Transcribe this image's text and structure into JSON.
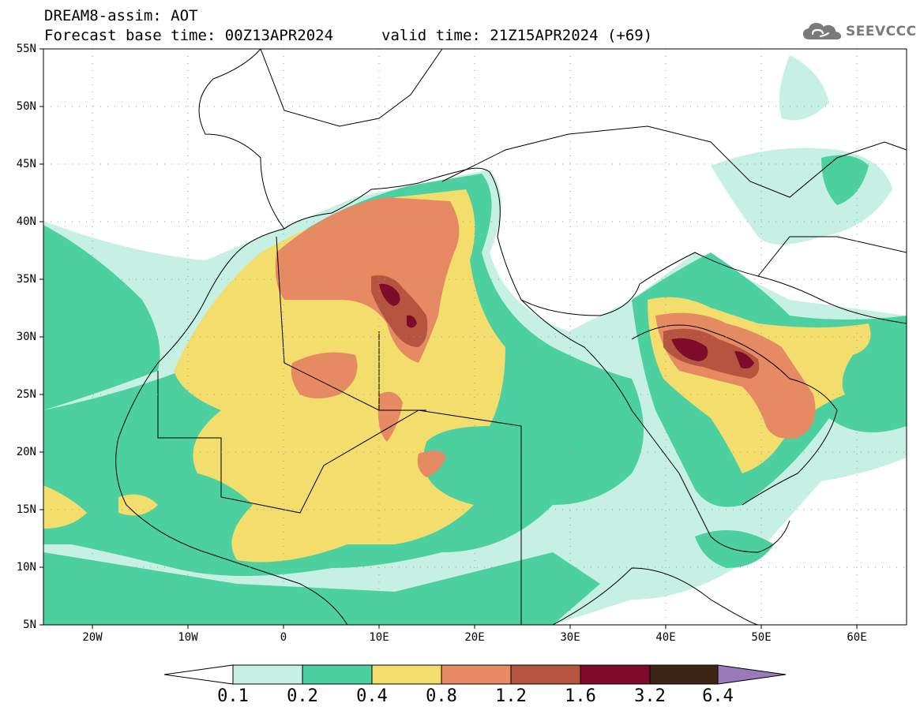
{
  "header": {
    "title": "DREAM8-assim: AOT",
    "base_time": "Forecast base time: 00Z13APR2024",
    "valid_time": "valid time: 21Z15APR2024 (+69)"
  },
  "logo": {
    "text": "SEEVCCC",
    "icon": "cloud-icon",
    "color": "#7a7a7a"
  },
  "map": {
    "lat_labels": [
      "55N",
      "50N",
      "45N",
      "40N",
      "35N",
      "30N",
      "25N",
      "20N",
      "15N",
      "10N",
      "5N"
    ],
    "lon_labels": [
      "20W",
      "10W",
      "0",
      "10E",
      "20E",
      "30E",
      "40E",
      "50E",
      "60E"
    ],
    "lon_range": [
      -25,
      65
    ],
    "lat_range": [
      5,
      55
    ],
    "gridlines": "dotted",
    "aot_colors": [
      "#c7f0e4",
      "#4dd0a0",
      "#f2dd6d",
      "#e58a63",
      "#b5543f",
      "#7e0b2a",
      "#3b2413"
    ]
  },
  "colorbar": {
    "labels": [
      "0.1",
      "0.2",
      "0.4",
      "0.8",
      "1.2",
      "1.6",
      "3.2",
      "6.4"
    ],
    "colors": [
      "#c7f0e4",
      "#4dd0a0",
      "#f2dd6d",
      "#e58a63",
      "#b5543f",
      "#7e0b2a",
      "#3b2413"
    ],
    "under_color": "#ffffff",
    "over_color": "#9a7ab8"
  }
}
